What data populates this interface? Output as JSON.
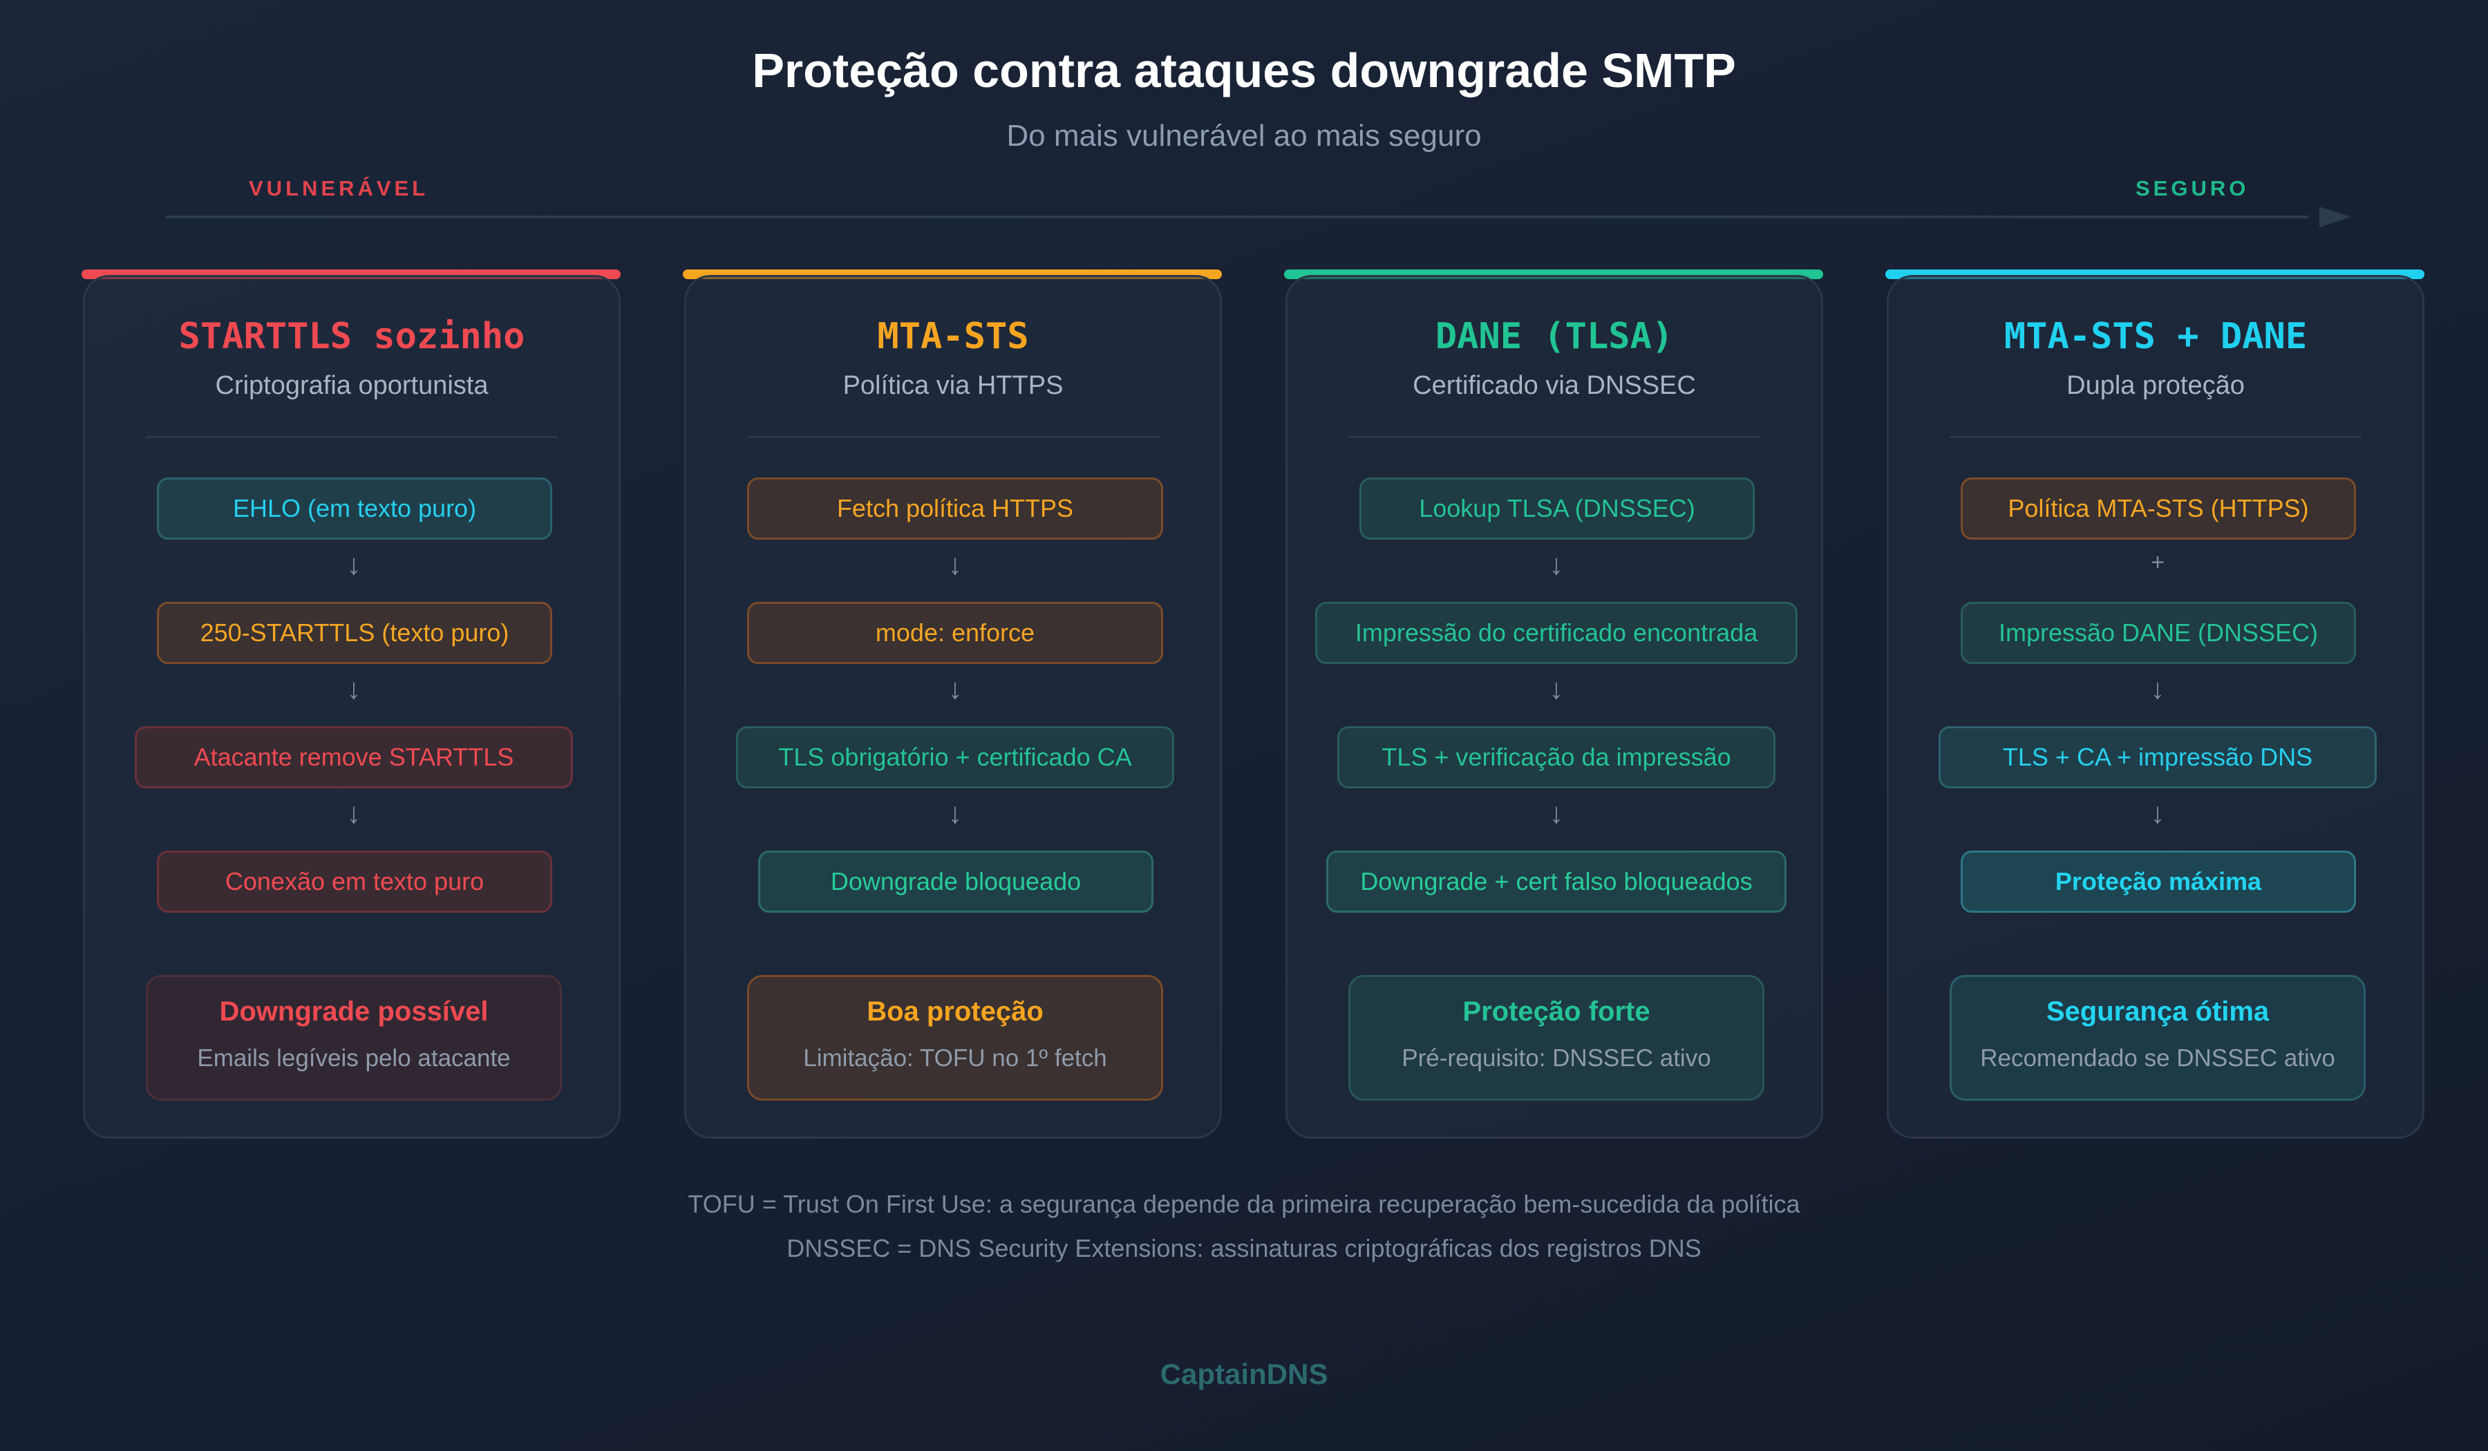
{
  "header": {
    "title": "Proteção contra ataques downgrade SMTP",
    "subtitle": "Do mais vulnerável ao mais seguro"
  },
  "scale": {
    "left_label": "VULNERÁVEL",
    "right_label": "SEGURO",
    "left_color": "#e0444c",
    "right_color": "#1fb98a"
  },
  "cards": [
    {
      "title": "STARTTLS sozinho",
      "subtitle": "Criptografia oportunista",
      "accent": "#ef4a52",
      "steps": [
        "EHLO (em texto puro)",
        "250-STARTTLS (texto puro)",
        "Atacante remove STARTTLS",
        "Conexão em texto puro"
      ],
      "connectors": [
        "↓",
        "↓",
        "↓"
      ],
      "result": {
        "title": "Downgrade possível",
        "text": "Emails legíveis pelo atacante"
      }
    },
    {
      "title": "MTA-STS",
      "subtitle": "Política via HTTPS",
      "accent": "#f6a521",
      "steps": [
        "Fetch política HTTPS",
        "mode: enforce",
        "TLS obrigatório + certificado CA",
        "Downgrade bloqueado"
      ],
      "connectors": [
        "↓",
        "↓",
        "↓"
      ],
      "result": {
        "title": "Boa proteção",
        "text": "Limitação: TOFU no 1º fetch"
      }
    },
    {
      "title": "DANE (TLSA)",
      "subtitle": "Certificado via DNSSEC",
      "accent": "#21c493",
      "steps": [
        "Lookup TLSA (DNSSEC)",
        "Impressão do certificado encontrada",
        "TLS + verificação da impressão",
        "Downgrade + cert falso bloqueados"
      ],
      "connectors": [
        "↓",
        "↓",
        "↓"
      ],
      "result": {
        "title": "Proteção forte",
        "text": "Pré-requisito: DNSSEC ativo"
      }
    },
    {
      "title": "MTA-STS + DANE",
      "subtitle": "Dupla proteção",
      "accent": "#20d1ef",
      "steps": [
        "Política MTA-STS (HTTPS)",
        "Impressão DANE (DNSSEC)",
        "TLS + CA + impressão DNS",
        "Proteção máxima"
      ],
      "connectors": [
        "+",
        "↓",
        "↓"
      ],
      "result": {
        "title": "Segurança ótima",
        "text": "Recomendado se DNSSEC ativo"
      }
    }
  ],
  "footnotes": [
    "TOFU = Trust On First Use: a segurança depende da primeira recuperação bem-sucedida da política",
    "DNSSEC = DNS Security Extensions: assinaturas criptográficas dos registros DNS"
  ],
  "brand": "CaptainDNS"
}
